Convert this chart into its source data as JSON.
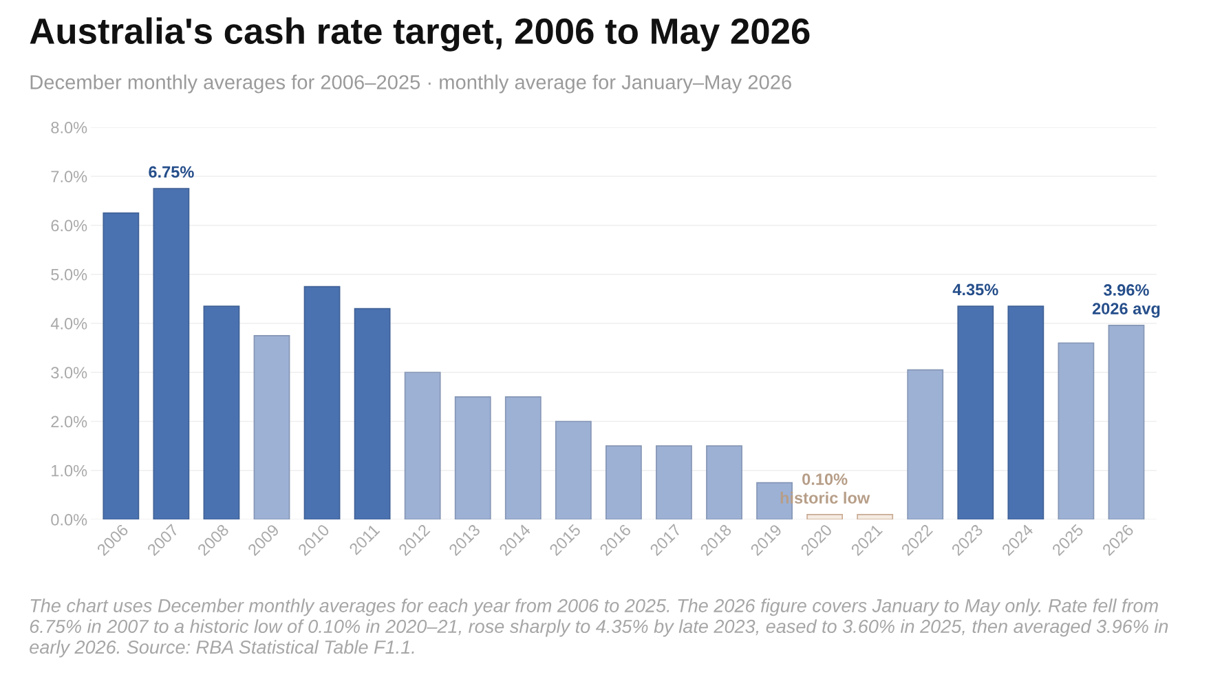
{
  "chart_data": {
    "type": "bar",
    "title": "Australia's cash rate target, 2006 to May 2026",
    "subtitle": "December monthly averages for 2006–2025 · monthly average for January–May 2026",
    "categories": [
      "2006",
      "2007",
      "2008",
      "2009",
      "2010",
      "2011",
      "2012",
      "2013",
      "2014",
      "2015",
      "2016",
      "2017",
      "2018",
      "2019",
      "2020",
      "2021",
      "2022",
      "2023",
      "2024",
      "2025",
      "2026"
    ],
    "values": [
      6.25,
      6.75,
      4.35,
      3.75,
      4.75,
      4.3,
      3.0,
      2.5,
      2.5,
      2.0,
      1.5,
      1.5,
      1.5,
      0.75,
      0.1,
      0.1,
      3.05,
      4.35,
      4.35,
      3.6,
      3.96
    ],
    "colors": [
      "#4b72b0",
      "#4b72b0",
      "#4b72b0",
      "#9db1d5",
      "#4b72b0",
      "#4b72b0",
      "#9db1d5",
      "#9db1d5",
      "#9db1d5",
      "#9db1d5",
      "#9db1d5",
      "#9db1d5",
      "#9db1d5",
      "#9db1d5",
      "#f5ebe3",
      "#f5ebe3",
      "#9db1d5",
      "#4b72b0",
      "#4b72b0",
      "#9db1d5",
      "#9db1d5"
    ],
    "ylim": [
      0,
      8
    ],
    "yticks": [
      {
        "value": 0,
        "label": "0.0%"
      },
      {
        "value": 1,
        "label": "1.0%"
      },
      {
        "value": 2,
        "label": "2.0%"
      },
      {
        "value": 3,
        "label": "3.0%"
      },
      {
        "value": 4,
        "label": "4.0%"
      },
      {
        "value": 5,
        "label": "5.0%"
      },
      {
        "value": 6,
        "label": "6.0%"
      },
      {
        "value": 7,
        "label": "7.0%"
      },
      {
        "value": 8,
        "label": "8.0%"
      }
    ],
    "grid": "y",
    "annotations": [
      {
        "text": "6.75%",
        "x": "2007",
        "y": 6.75
      },
      {
        "text": "4.35%",
        "x": "2023",
        "y": 4.35
      },
      {
        "text": "3.96%\n2026 avg",
        "x": "2026",
        "y": 3.96
      },
      {
        "text": "0.10%\nhistoric low",
        "x": "2020",
        "y": 0.1
      },
      "The chart uses December monthly averages for each year from 2006 to 2025. The 2026 figure covers January to May only. Rate fell from 6.75% in 2007 to a historic low of 0.10% in 2020–21, rose sharply to 4.35% by late 2023, eased to 3.60% in 2025, then averaged 3.96% in early 2026. Source: RBA Statistical Table F1.1."
    ]
  }
}
